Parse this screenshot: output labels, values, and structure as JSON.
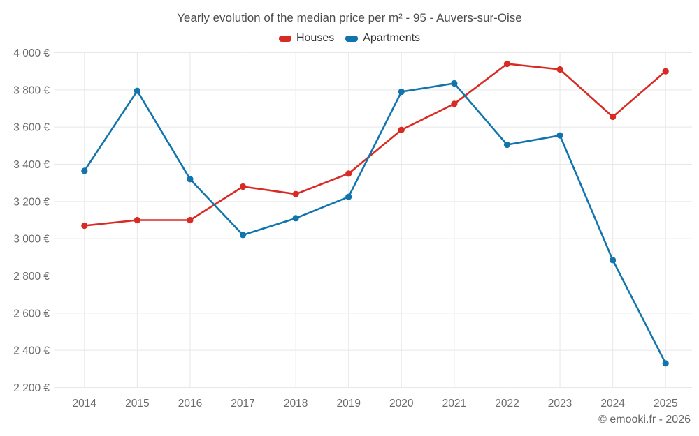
{
  "colors": {
    "background": "#ffffff",
    "grid": "#e8e8e8",
    "axis_label": "#6a6a6a",
    "title": "#4b4b4b",
    "legend_text": "#333333"
  },
  "chart_data": {
    "type": "line",
    "title": "Yearly evolution of the median price per m² - 95 - Auvers-sur-Oise",
    "xlabel": "",
    "ylabel": "",
    "categories": [
      "2014",
      "2015",
      "2016",
      "2017",
      "2018",
      "2019",
      "2020",
      "2021",
      "2022",
      "2023",
      "2024",
      "2025"
    ],
    "series": [
      {
        "name": "Houses",
        "color": "#d92b26",
        "values": [
          3070,
          3100,
          3100,
          3280,
          3240,
          3350,
          3585,
          3725,
          3940,
          3910,
          3655,
          3900
        ]
      },
      {
        "name": "Apartments",
        "color": "#1274ac",
        "values": [
          3365,
          3795,
          3320,
          3020,
          3110,
          3225,
          3790,
          3835,
          3505,
          3555,
          2885,
          2330
        ]
      }
    ],
    "ylim": [
      2200,
      4000
    ],
    "yticks": [
      2200,
      2400,
      2600,
      2800,
      3000,
      3200,
      3400,
      3600,
      3800,
      4000
    ],
    "ytick_labels": [
      "2 200 €",
      "2 400 €",
      "2 600 €",
      "2 800 €",
      "3 000 €",
      "3 200 €",
      "3 400 €",
      "3 600 €",
      "3 800 €",
      "4 000 €"
    ],
    "grid": true,
    "legend_position": "top",
    "currency": "€",
    "attribution": "© emooki.fr - 2026"
  }
}
